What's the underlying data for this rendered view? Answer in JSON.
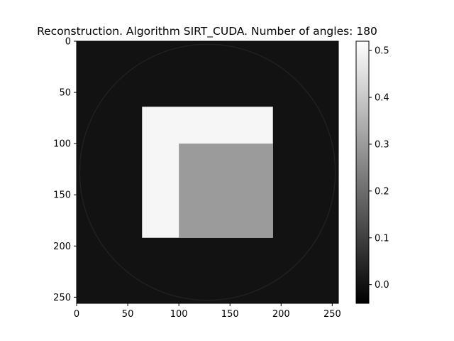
{
  "chart_data": {
    "type": "heatmap",
    "title": "Reconstruction. Algorithm SIRT_CUDA. Number of angles: 180",
    "xlabel": "",
    "ylabel": "",
    "colormap": "gray",
    "image_size": [
      256,
      256
    ],
    "xlim": [
      0,
      256
    ],
    "ylim": [
      256,
      0
    ],
    "x_ticks": [
      0,
      50,
      100,
      150,
      200,
      250
    ],
    "y_ticks": [
      0,
      50,
      100,
      150,
      200,
      250
    ],
    "background_value": 0.0,
    "regions": [
      {
        "shape": "square",
        "x_range": [
          64,
          192
        ],
        "y_range": [
          64,
          192
        ],
        "value": 0.5
      },
      {
        "shape": "square",
        "x_range": [
          100,
          192
        ],
        "y_range": [
          100,
          192
        ],
        "value": 0.3
      }
    ],
    "reconstruction_circle": {
      "center": [
        128,
        128
      ],
      "radius": 125,
      "value": 0.01
    },
    "colorbar": {
      "range": [
        -0.04,
        0.52
      ],
      "ticks": [
        0.0,
        0.1,
        0.2,
        0.3,
        0.4,
        0.5
      ],
      "tick_labels": [
        "0.0",
        "0.1",
        "0.2",
        "0.3",
        "0.4",
        "0.5"
      ]
    }
  }
}
